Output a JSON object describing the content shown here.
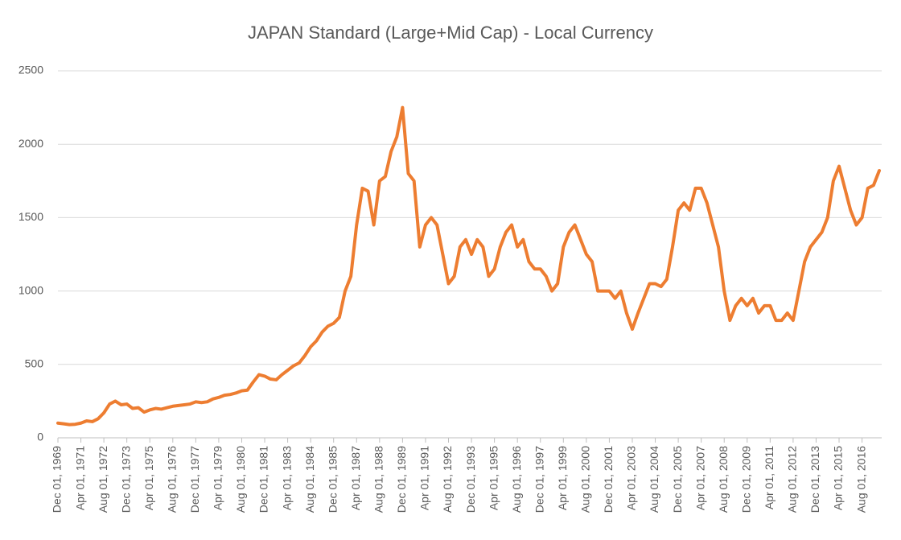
{
  "chart_data": {
    "type": "line",
    "title": "JAPAN Standard (Large+Mid Cap) - Local Currency",
    "categories": [
      "Dec 01, 1969",
      null,
      null,
      null,
      "Apr 01, 1971",
      null,
      null,
      null,
      "Aug 01, 1972",
      null,
      null,
      null,
      "Dec 01, 1973",
      null,
      null,
      null,
      "Apr 01, 1975",
      null,
      null,
      null,
      "Aug 01, 1976",
      null,
      null,
      null,
      "Dec 01, 1977",
      null,
      null,
      null,
      "Apr 01, 1979",
      null,
      null,
      null,
      "Aug 01, 1980",
      null,
      null,
      null,
      "Dec 01, 1981",
      null,
      null,
      null,
      "Apr 01, 1983",
      null,
      null,
      null,
      "Aug 01, 1984",
      null,
      null,
      null,
      "Dec 01, 1985",
      null,
      null,
      null,
      "Apr 01, 1987",
      null,
      null,
      null,
      "Aug 01, 1988",
      null,
      null,
      null,
      "Dec 01, 1989",
      null,
      null,
      null,
      "Apr 01, 1991",
      null,
      null,
      null,
      "Aug 01, 1992",
      null,
      null,
      null,
      "Dec 01, 1993",
      null,
      null,
      null,
      "Apr 01, 1995",
      null,
      null,
      null,
      "Aug 01, 1996",
      null,
      null,
      null,
      "Dec 01, 1997",
      null,
      null,
      null,
      "Apr 01, 1999",
      null,
      null,
      null,
      "Aug 01, 2000",
      null,
      null,
      null,
      "Dec 01, 2001",
      null,
      null,
      null,
      "Apr 01, 2003",
      null,
      null,
      null,
      "Aug 01, 2004",
      null,
      null,
      null,
      "Dec 01, 2005",
      null,
      null,
      null,
      "Apr 01, 2007",
      null,
      null,
      null,
      "Aug 01, 2008",
      null,
      null,
      null,
      "Dec 01, 2009",
      null,
      null,
      null,
      "Apr 01, 2011",
      null,
      null,
      null,
      "Aug 01, 2012",
      null,
      null,
      null,
      "Dec 01, 2013",
      null,
      null,
      null,
      "Apr 01, 2015",
      null,
      null,
      null,
      "Aug 01, 2016",
      null,
      null,
      null
    ],
    "values": [
      100,
      95,
      90,
      92,
      100,
      115,
      110,
      130,
      170,
      230,
      250,
      225,
      230,
      200,
      205,
      175,
      190,
      200,
      195,
      205,
      215,
      220,
      225,
      230,
      245,
      240,
      245,
      265,
      275,
      290,
      295,
      305,
      320,
      325,
      380,
      430,
      420,
      400,
      395,
      430,
      460,
      490,
      510,
      560,
      620,
      660,
      720,
      760,
      780,
      820,
      1000,
      1100,
      1450,
      1700,
      1680,
      1450,
      1750,
      1780,
      1950,
      2050,
      2250,
      1800,
      1750,
      1300,
      1450,
      1500,
      1450,
      1250,
      1050,
      1100,
      1300,
      1350,
      1250,
      1350,
      1300,
      1100,
      1150,
      1300,
      1400,
      1450,
      1300,
      1350,
      1200,
      1150,
      1150,
      1100,
      1000,
      1050,
      1300,
      1400,
      1450,
      1350,
      1250,
      1200,
      1000,
      1000,
      1000,
      950,
      1000,
      850,
      740,
      850,
      950,
      1050,
      1050,
      1030,
      1080,
      1300,
      1550,
      1600,
      1550,
      1700,
      1700,
      1600,
      1450,
      1300,
      1000,
      800,
      900,
      950,
      900,
      950,
      850,
      900,
      900,
      800,
      800,
      850,
      800,
      1000,
      1200,
      1300,
      1350,
      1400,
      1500,
      1750,
      1850,
      1700,
      1550,
      1450,
      1500,
      1700,
      1720,
      1820
    ],
    "color": "#ed7d31",
    "ylim": [
      0,
      2500
    ],
    "yticks": [
      0,
      500,
      1000,
      1500,
      2000,
      2500
    ],
    "grid": true
  }
}
